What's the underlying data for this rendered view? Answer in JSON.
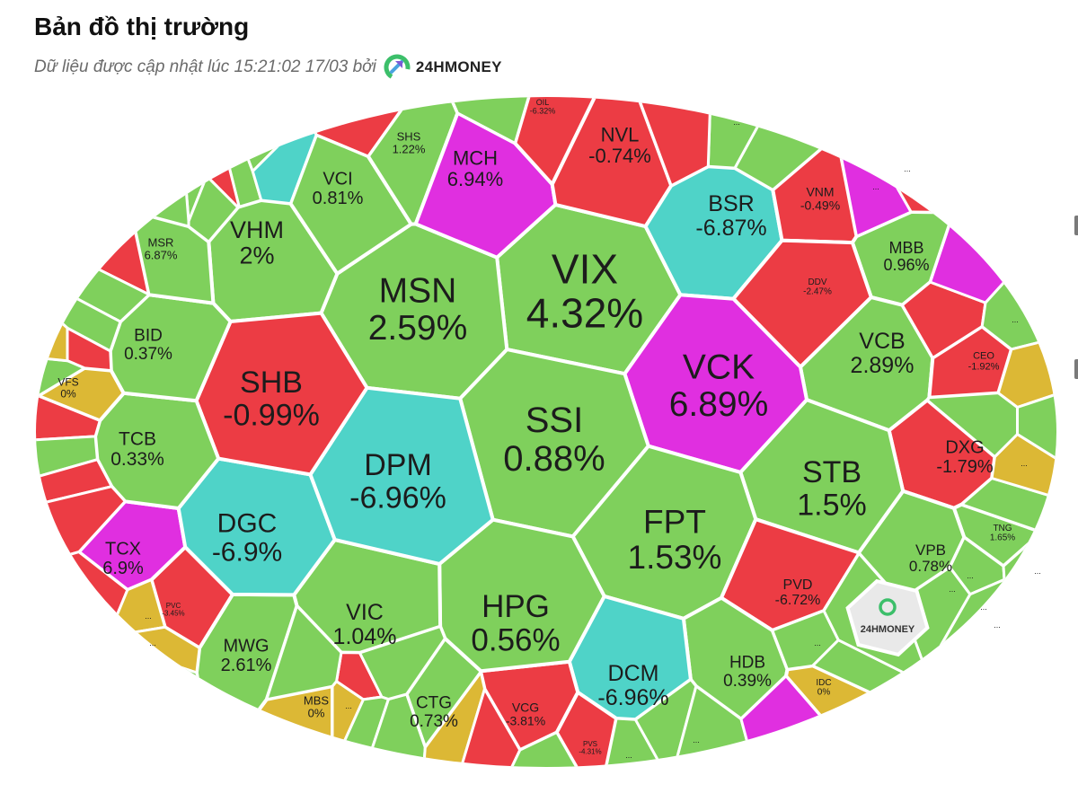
{
  "header": {
    "title": "Bản đồ thị trường",
    "subtitle": "Dữ liệu được cập nhật lúc 15:21:02 17/03 bởi",
    "brand": "24HMONEY"
  },
  "colors": {
    "up": "#7fd05c",
    "down": "#ec3c44",
    "ceiling": "#e02fe0",
    "floor": "#4fd3c8",
    "reference": "#dcb835",
    "border": "#ffffff"
  },
  "chart_data": {
    "type": "heatmap",
    "title": "Bản đồ thị trường",
    "unit": "%",
    "watermark": "24HMONEY",
    "tiles": [
      {
        "ticker": "VIX",
        "change": "4.32%",
        "status": "up"
      },
      {
        "ticker": "MSN",
        "change": "2.59%",
        "status": "up"
      },
      {
        "ticker": "VHM",
        "change": "2%",
        "status": "up"
      },
      {
        "ticker": "VCI",
        "change": "0.81%",
        "status": "up"
      },
      {
        "ticker": "SHS",
        "change": "1.22%",
        "status": "up"
      },
      {
        "ticker": "MCH",
        "change": "6.94%",
        "status": "ceiling"
      },
      {
        "ticker": "OIL",
        "change": "-6.32%",
        "status": "down"
      },
      {
        "ticker": "NVL",
        "change": "-0.74%",
        "status": "down"
      },
      {
        "ticker": "BSR",
        "change": "-6.87%",
        "status": "floor"
      },
      {
        "ticker": "VNM",
        "change": "-0.49%",
        "status": "down"
      },
      {
        "ticker": "MBB",
        "change": "0.96%",
        "status": "up"
      },
      {
        "ticker": "DDV",
        "change": "-2.47%",
        "status": "down"
      },
      {
        "ticker": "VCB",
        "change": "2.89%",
        "status": "up"
      },
      {
        "ticker": "CEO",
        "change": "-1.92%",
        "status": "down"
      },
      {
        "ticker": "DXG",
        "change": "-1.79%",
        "status": "down"
      },
      {
        "ticker": "TNG",
        "change": "1.65%",
        "status": "up"
      },
      {
        "ticker": "VPB",
        "change": "0.78%",
        "status": "up"
      },
      {
        "ticker": "STB",
        "change": "1.5%",
        "status": "up"
      },
      {
        "ticker": "VCK",
        "change": "6.89%",
        "status": "ceiling"
      },
      {
        "ticker": "SSI",
        "change": "0.88%",
        "status": "up"
      },
      {
        "ticker": "FPT",
        "change": "1.53%",
        "status": "up"
      },
      {
        "ticker": "PVD",
        "change": "-6.72%",
        "status": "down"
      },
      {
        "ticker": "HDB",
        "change": "0.39%",
        "status": "up"
      },
      {
        "ticker": "IDC",
        "change": "0%",
        "status": "reference"
      },
      {
        "ticker": "DCM",
        "change": "-6.96%",
        "status": "floor"
      },
      {
        "ticker": "PVS",
        "change": "-4.31%",
        "status": "down"
      },
      {
        "ticker": "VCG",
        "change": "-3.81%",
        "status": "down"
      },
      {
        "ticker": "CTG",
        "change": "0.73%",
        "status": "up"
      },
      {
        "ticker": "HPG",
        "change": "0.56%",
        "status": "up"
      },
      {
        "ticker": "VIC",
        "change": "1.04%",
        "status": "up"
      },
      {
        "ticker": "MBS",
        "change": "0%",
        "status": "reference"
      },
      {
        "ticker": "MWG",
        "change": "2.61%",
        "status": "up"
      },
      {
        "ticker": "PVC",
        "change": "-3.45%",
        "status": "down"
      },
      {
        "ticker": "TCX",
        "change": "6.9%",
        "status": "ceiling"
      },
      {
        "ticker": "DGC",
        "change": "-6.9%",
        "status": "floor"
      },
      {
        "ticker": "DPM",
        "change": "-6.96%",
        "status": "floor"
      },
      {
        "ticker": "SHB",
        "change": "-0.99%",
        "status": "down"
      },
      {
        "ticker": "TCB",
        "change": "0.33%",
        "status": "up"
      },
      {
        "ticker": "VFS",
        "change": "0%",
        "status": "reference"
      },
      {
        "ticker": "BID",
        "change": "0.37%",
        "status": "up"
      },
      {
        "ticker": "MSR",
        "change": "6.87%",
        "status": "up"
      }
    ],
    "small_tiles": [
      {
        "label": "",
        "status": "up"
      },
      {
        "label": "",
        "status": "up"
      },
      {
        "label": "",
        "status": "up"
      },
      {
        "label": "",
        "status": "down"
      },
      {
        "label": "",
        "status": "floor"
      },
      {
        "label": "",
        "status": "up"
      },
      {
        "label": "",
        "status": "up"
      },
      {
        "label": "",
        "status": "down"
      },
      {
        "label": "",
        "status": "up"
      },
      {
        "label": "",
        "status": "up"
      },
      {
        "label": "",
        "status": "down"
      },
      {
        "label": "",
        "status": "up"
      },
      {
        "label": "",
        "status": "reference"
      },
      {
        "label": "",
        "status": "down"
      },
      {
        "label": "",
        "status": "up"
      },
      {
        "label": "",
        "status": "down"
      },
      {
        "label": "",
        "status": "down"
      },
      {
        "label": "",
        "status": "down"
      },
      {
        "label": "...",
        "status": "reference"
      },
      {
        "label": "...",
        "status": "reference"
      },
      {
        "label": "",
        "status": "up"
      },
      {
        "label": "...",
        "status": "reference"
      },
      {
        "label": "",
        "status": "down"
      },
      {
        "label": "",
        "status": "up"
      },
      {
        "label": "",
        "status": "up"
      },
      {
        "label": "",
        "status": "up"
      },
      {
        "label": "",
        "status": "up"
      },
      {
        "label": "",
        "status": "reference"
      },
      {
        "label": "",
        "status": "down"
      },
      {
        "label": "",
        "status": "up"
      },
      {
        "label": "...",
        "status": "up"
      },
      {
        "label": "",
        "status": "up"
      },
      {
        "label": "...",
        "status": "up"
      },
      {
        "label": "",
        "status": "ceiling"
      },
      {
        "label": "...",
        "status": "up"
      },
      {
        "label": "...",
        "status": "up"
      },
      {
        "label": "...",
        "status": "up"
      },
      {
        "label": "...",
        "status": "up"
      },
      {
        "label": "...",
        "status": "up"
      },
      {
        "label": "",
        "status": "up"
      },
      {
        "label": "...",
        "status": "reference"
      },
      {
        "label": "",
        "status": "up"
      },
      {
        "label": "",
        "status": "down"
      },
      {
        "label": "",
        "status": "ceiling"
      },
      {
        "label": "...",
        "status": "up"
      },
      {
        "label": "",
        "status": "reference"
      },
      {
        "label": "...",
        "status": "up"
      },
      {
        "label": "",
        "status": "up"
      },
      {
        "label": "...",
        "status": "ceiling"
      },
      {
        "label": "...",
        "status": "down"
      },
      {
        "label": "",
        "status": "up"
      },
      {
        "label": "...",
        "status": "up"
      },
      {
        "label": "",
        "status": "down"
      },
      {
        "label": "",
        "status": "up"
      },
      {
        "label": "",
        "status": "down"
      },
      {
        "label": "",
        "status": "up"
      },
      {
        "label": "",
        "status": "up"
      }
    ]
  }
}
